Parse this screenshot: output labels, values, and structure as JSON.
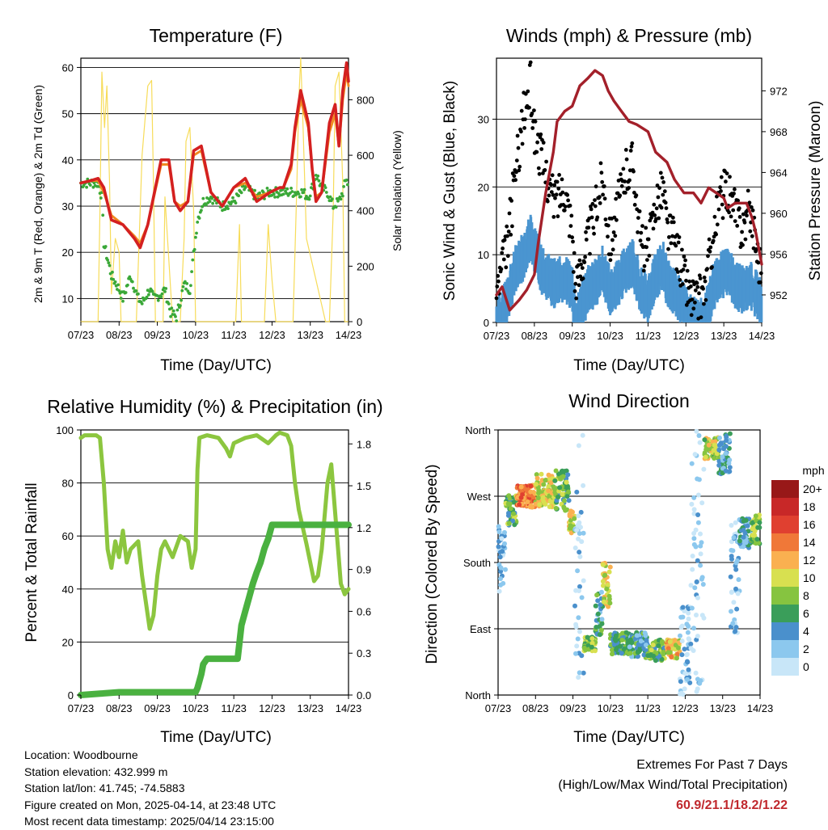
{
  "chart_data": [
    {
      "id": "temperature",
      "type": "line",
      "title": "Temperature (F)",
      "xlabel": "Time (Day/UTC)",
      "ylabel": "2m & 9m T (Red, Orange) & 2m Td (Green)",
      "y2label": "Solar Insolation (Yellow)",
      "x_ticks": [
        "07/23",
        "08/23",
        "09/23",
        "10/23",
        "11/23",
        "12/23",
        "13/23",
        "14/23"
      ],
      "xlim": [
        0,
        7
      ],
      "ylim": [
        5,
        62
      ],
      "y_ticks": [
        10,
        20,
        30,
        40,
        50,
        60
      ],
      "y2lim": [
        0,
        950
      ],
      "y2_ticks": [
        0,
        200,
        400,
        600,
        800
      ],
      "grid": true,
      "series": [
        {
          "key": "t2",
          "color": "#d42020",
          "x": [
            0,
            0.25,
            0.45,
            0.6,
            0.8,
            1.1,
            1.4,
            1.55,
            1.75,
            1.95,
            2.1,
            2.3,
            2.45,
            2.6,
            2.8,
            2.95,
            3.15,
            3.4,
            3.7,
            4.0,
            4.3,
            4.6,
            4.95,
            5.2,
            5.3,
            5.5,
            5.6,
            5.75,
            5.95,
            6.05,
            6.15,
            6.3,
            6.5,
            6.65,
            6.75,
            6.85,
            6.95,
            7.0
          ],
          "y": [
            35,
            35.5,
            36,
            34,
            27,
            26,
            23,
            21,
            26,
            34,
            40,
            40,
            31,
            29,
            31,
            42,
            43,
            33,
            30,
            34,
            36,
            31,
            33,
            34,
            34,
            39,
            47,
            55,
            48,
            38,
            31,
            33,
            48,
            52,
            43,
            55,
            61,
            57
          ]
        },
        {
          "key": "t9",
          "color": "#f08a20",
          "x": [
            0,
            0.25,
            0.45,
            0.6,
            0.8,
            1.1,
            1.4,
            1.55,
            1.75,
            1.95,
            2.1,
            2.3,
            2.45,
            2.6,
            2.8,
            2.95,
            3.15,
            3.4,
            3.7,
            4.0,
            4.3,
            4.6,
            4.95,
            5.2,
            5.3,
            5.5,
            5.6,
            5.75,
            5.95,
            6.05,
            6.15,
            6.3,
            6.5,
            6.65,
            6.75,
            6.85,
            6.95,
            7.0
          ],
          "y": [
            35,
            35.5,
            35.5,
            33,
            28,
            26,
            23.5,
            22,
            26,
            33.5,
            39,
            39,
            31,
            30,
            31,
            41,
            42,
            33,
            30,
            34,
            35,
            32,
            33,
            34,
            34,
            38,
            46,
            53,
            47,
            38,
            32,
            33,
            46,
            50,
            43,
            53,
            59,
            56
          ]
        },
        {
          "key": "td",
          "color": "#3aa838",
          "x": [
            0,
            0.3,
            0.45,
            0.55,
            0.6,
            0.8,
            1.0,
            1.1,
            1.3,
            1.5,
            1.6,
            1.8,
            1.9,
            2.1,
            2.2,
            2.35,
            2.5,
            2.7,
            2.85,
            3.05,
            3.2,
            3.4,
            3.7,
            4.0,
            4.3,
            4.6,
            4.95,
            5.2,
            5.5,
            5.8,
            5.95,
            6.05,
            6.15,
            6.3,
            6.45,
            6.6,
            6.75,
            6.85,
            6.95,
            7.0
          ],
          "y": [
            35,
            35,
            35,
            32,
            22,
            15,
            12,
            10,
            15,
            10,
            9,
            12,
            10,
            11,
            12,
            7,
            6,
            13,
            12,
            27,
            31,
            32,
            30,
            31,
            34,
            32,
            33,
            33,
            33,
            33,
            32,
            34,
            37,
            34,
            33,
            30,
            31,
            33,
            36,
            34
          ]
        },
        {
          "key": "solar",
          "axis": "y2",
          "color": "#f7dc5a",
          "x": [
            0,
            0.35,
            0.45,
            0.5,
            0.55,
            0.62,
            0.68,
            0.75,
            0.8,
            0.9,
            1.0,
            1.05,
            1.2,
            1.35,
            1.45,
            1.6,
            1.75,
            1.85,
            1.9,
            1.95,
            2.1,
            2.15,
            2.2,
            2.4,
            2.6,
            2.7,
            2.75,
            2.85,
            2.95,
            3.0,
            3.1,
            3.15,
            3.5,
            3.6,
            4.05,
            4.15,
            4.2,
            4.6,
            4.8,
            4.9,
            5.0,
            5.1,
            5.5,
            5.55,
            5.65,
            5.7,
            5.75,
            5.8,
            5.9,
            6.4,
            6.5,
            6.6,
            6.65,
            6.75,
            6.85,
            6.9,
            7.0
          ],
          "y": [
            0,
            0,
            0,
            400,
            900,
            700,
            850,
            500,
            100,
            300,
            250,
            0,
            0,
            0,
            0,
            600,
            850,
            870,
            500,
            0,
            0,
            0,
            450,
            0,
            0,
            300,
            650,
            700,
            400,
            0,
            0,
            0,
            0,
            0,
            0,
            350,
            0,
            0,
            0,
            350,
            150,
            0,
            0,
            0,
            500,
            800,
            950,
            750,
            300,
            0,
            0,
            400,
            850,
            900,
            500,
            0,
            0
          ]
        }
      ]
    },
    {
      "id": "winds",
      "type": "scatter",
      "title": "Winds (mph) & Pressure (mb)",
      "xlabel": "Time (Day/UTC)",
      "ylabel": "Sonic Wind & Gust (Blue, Black)",
      "y2label": "Station Pressure (Maroon)",
      "x_ticks": [
        "07/23",
        "08/23",
        "09/23",
        "10/23",
        "11/23",
        "12/23",
        "13/23",
        "14/23"
      ],
      "xlim": [
        0,
        7
      ],
      "ylim": [
        0,
        39
      ],
      "y_ticks": [
        0,
        10,
        20,
        30
      ],
      "y2lim": [
        949.3,
        975.2
      ],
      "y2_ticks": [
        952,
        956,
        960,
        964,
        968,
        972
      ],
      "grid": true,
      "series": [
        {
          "key": "gust",
          "color": "#000000",
          "x": [
            0,
            0.3,
            0.5,
            0.7,
            0.9,
            1.0,
            1.2,
            1.5,
            1.8,
            2.0,
            2.1,
            2.2,
            2.4,
            2.6,
            2.8,
            3.0,
            3.2,
            3.4,
            3.6,
            3.8,
            4.0,
            4.2,
            4.4,
            4.5,
            4.7,
            4.9,
            5.1,
            5.3,
            5.5,
            5.7,
            5.9,
            6.1,
            6.3,
            6.5,
            6.7,
            6.9,
            7.0
          ],
          "y": [
            4,
            12,
            22,
            30,
            35,
            28,
            24,
            18,
            20,
            14,
            4,
            8,
            12,
            16,
            22,
            12,
            17,
            22,
            24,
            12,
            10,
            18,
            20,
            14,
            12,
            8,
            4,
            3,
            5,
            12,
            18,
            20,
            16,
            14,
            17,
            10,
            8
          ]
        },
        {
          "key": "wind",
          "color": "#4a95d0",
          "x": [
            0,
            0.3,
            0.5,
            0.7,
            0.9,
            1.0,
            1.2,
            1.5,
            1.8,
            2.0,
            2.1,
            2.2,
            2.4,
            2.6,
            2.8,
            3.0,
            3.2,
            3.4,
            3.6,
            3.8,
            4.0,
            4.2,
            4.4,
            4.5,
            4.7,
            4.9,
            5.1,
            5.3,
            5.5,
            5.7,
            5.9,
            6.1,
            6.3,
            6.5,
            6.7,
            6.9,
            7.0
          ],
          "y": [
            1,
            5,
            9,
            11,
            14,
            12,
            9,
            7,
            8,
            6,
            1,
            3,
            6,
            7,
            9,
            6,
            7,
            9,
            10,
            6,
            5,
            8,
            10,
            7,
            6,
            4,
            2,
            1,
            2,
            6,
            8,
            9,
            7,
            6,
            7,
            5,
            4
          ]
        },
        {
          "key": "pressure",
          "axis": "y2",
          "color": "#a3202a",
          "x": [
            0,
            0.15,
            0.35,
            0.6,
            0.8,
            1.0,
            1.1,
            1.3,
            1.5,
            1.6,
            1.8,
            2.0,
            2.2,
            2.4,
            2.6,
            2.8,
            2.95,
            3.1,
            3.3,
            3.5,
            3.7,
            4.0,
            4.2,
            4.5,
            4.7,
            4.95,
            5.2,
            5.4,
            5.6,
            5.8,
            6.0,
            6.1,
            6.3,
            6.6,
            6.75,
            6.85,
            7.0
          ],
          "y": [
            952,
            952.8,
            950.5,
            951.5,
            952.5,
            954,
            957,
            962,
            966,
            969,
            970,
            970.5,
            972.5,
            973.2,
            974,
            973.5,
            972,
            971,
            970,
            969,
            968.7,
            968,
            966,
            965,
            963.3,
            962,
            962,
            961,
            962.5,
            962,
            961.5,
            960.5,
            961,
            961,
            959.5,
            958,
            955
          ]
        }
      ]
    },
    {
      "id": "humidity",
      "type": "line",
      "title": "Relative Humidity (%) & Precipitation (in)",
      "xlabel": "Time (Day/UTC)",
      "ylabel": "Percent & Total Rainfall",
      "x_ticks": [
        "07/23",
        "08/23",
        "09/23",
        "10/23",
        "11/23",
        "12/23",
        "13/23",
        "14/23"
      ],
      "xlim": [
        0,
        7
      ],
      "ylim": [
        0,
        100
      ],
      "y_ticks": [
        0,
        20,
        40,
        60,
        80,
        100
      ],
      "y2lim": [
        0,
        1.9
      ],
      "y2_ticks": [
        "0.0",
        "0.3",
        "0.6",
        "0.9",
        "1.2",
        "1.5",
        "1.8"
      ],
      "grid": true,
      "series": [
        {
          "key": "rh",
          "color": "#8cc63f",
          "x": [
            0,
            0.1,
            0.4,
            0.5,
            0.6,
            0.7,
            0.8,
            0.9,
            1.0,
            1.1,
            1.2,
            1.3,
            1.5,
            1.6,
            1.7,
            1.8,
            1.9,
            2.0,
            2.1,
            2.2,
            2.4,
            2.6,
            2.8,
            2.9,
            3.0,
            3.05,
            3.1,
            3.3,
            3.6,
            3.8,
            3.9,
            4.0,
            4.3,
            4.6,
            4.9,
            5.1,
            5.2,
            5.4,
            5.5,
            5.6,
            5.7,
            5.9,
            6.1,
            6.2,
            6.3,
            6.45,
            6.55,
            6.7,
            6.8,
            6.9,
            7.0
          ],
          "y": [
            97,
            98,
            98,
            97,
            80,
            55,
            48,
            58,
            52,
            62,
            50,
            55,
            58,
            45,
            35,
            25,
            30,
            45,
            55,
            58,
            52,
            60,
            58,
            48,
            55,
            85,
            97,
            98,
            97,
            93,
            90,
            95,
            97,
            98,
            95,
            98,
            99,
            98,
            94,
            80,
            70,
            57,
            43,
            45,
            55,
            80,
            87,
            60,
            42,
            38,
            40
          ]
        },
        {
          "key": "precip",
          "axis": "y2",
          "color": "#4ab140",
          "x": [
            0,
            0.5,
            1.0,
            1.5,
            2.0,
            2.5,
            3.0,
            3.05,
            3.15,
            3.2,
            3.3,
            3.5,
            3.8,
            4.0,
            4.1,
            4.2,
            4.3,
            4.4,
            4.5,
            4.6,
            4.7,
            4.8,
            4.9,
            5.0,
            5.5,
            6.0,
            6.5,
            7.0
          ],
          "y": [
            0.0,
            0.01,
            0.02,
            0.02,
            0.02,
            0.02,
            0.02,
            0.05,
            0.15,
            0.22,
            0.26,
            0.26,
            0.26,
            0.26,
            0.26,
            0.5,
            0.6,
            0.7,
            0.8,
            0.88,
            0.95,
            1.05,
            1.12,
            1.22,
            1.22,
            1.22,
            1.22,
            1.22
          ]
        }
      ]
    },
    {
      "id": "wind_direction",
      "type": "scatter",
      "title": "Wind Direction",
      "xlabel": "Time (Day/UTC)",
      "ylabel": "Direction (Colored By Speed)",
      "x_ticks": [
        "07/23",
        "08/23",
        "09/23",
        "10/23",
        "11/23",
        "12/23",
        "13/23",
        "14/23"
      ],
      "xlim": [
        0,
        7
      ],
      "ylim": [
        0,
        360
      ],
      "y_ticks": [
        "North",
        "East",
        "South",
        "West",
        "North"
      ],
      "colorbar_title": "mph",
      "colorbar_labels": [
        "0",
        "2",
        "4",
        "6",
        "8",
        "10",
        "12",
        "14",
        "16",
        "18",
        "20+"
      ],
      "colorbar_colors": [
        "#c8e6f8",
        "#8cc8ee",
        "#4a90cc",
        "#3a9e5a",
        "#86c440",
        "#d8e050",
        "#fab050",
        "#f07838",
        "#e04030",
        "#c82828",
        "#981818"
      ],
      "clusters": [
        {
          "x0": 0.0,
          "x1": 0.2,
          "d0": 140,
          "d1": 230,
          "s": 2
        },
        {
          "x0": 0.2,
          "x1": 0.5,
          "d0": 230,
          "d1": 275,
          "s": 7
        },
        {
          "x0": 0.5,
          "x1": 1.0,
          "d0": 255,
          "d1": 285,
          "s": 14
        },
        {
          "x0": 1.0,
          "x1": 1.5,
          "d0": 255,
          "d1": 300,
          "s": 10
        },
        {
          "x0": 1.5,
          "x1": 1.9,
          "d0": 250,
          "d1": 305,
          "s": 7
        },
        {
          "x0": 1.9,
          "x1": 2.05,
          "d0": 220,
          "d1": 250,
          "s": 10
        },
        {
          "x0": 2.05,
          "x1": 2.3,
          "d0": 0,
          "d1": 360,
          "s": 1
        },
        {
          "x0": 2.3,
          "x1": 2.6,
          "d0": 60,
          "d1": 80,
          "s": 8
        },
        {
          "x0": 2.6,
          "x1": 2.8,
          "d0": 80,
          "d1": 140,
          "s": 5
        },
        {
          "x0": 2.8,
          "x1": 3.0,
          "d0": 120,
          "d1": 180,
          "s": 10
        },
        {
          "x0": 3.0,
          "x1": 3.5,
          "d0": 55,
          "d1": 85,
          "s": 6
        },
        {
          "x0": 3.5,
          "x1": 4.0,
          "d0": 50,
          "d1": 85,
          "s": 5
        },
        {
          "x0": 4.0,
          "x1": 4.5,
          "d0": 45,
          "d1": 75,
          "s": 7
        },
        {
          "x0": 4.5,
          "x1": 4.85,
          "d0": 50,
          "d1": 75,
          "s": 11
        },
        {
          "x0": 4.85,
          "x1": 5.15,
          "d0": 0,
          "d1": 120,
          "s": 2
        },
        {
          "x0": 5.15,
          "x1": 5.5,
          "d0": 0,
          "d1": 360,
          "s": 1
        },
        {
          "x0": 5.5,
          "x1": 5.9,
          "d0": 320,
          "d1": 350,
          "s": 9
        },
        {
          "x0": 5.9,
          "x1": 6.2,
          "d0": 300,
          "d1": 355,
          "s": 4
        },
        {
          "x0": 6.2,
          "x1": 6.45,
          "d0": 60,
          "d1": 240,
          "s": 2
        },
        {
          "x0": 6.45,
          "x1": 6.75,
          "d0": 200,
          "d1": 240,
          "s": 4
        },
        {
          "x0": 6.75,
          "x1": 7.0,
          "d0": 205,
          "d1": 245,
          "s": 8
        }
      ]
    }
  ],
  "info": {
    "location": "Location: Woodbourne",
    "elevation": "Station elevation: 432.999 m",
    "latlon": "Station lat/lon: 41.745; -74.5883",
    "created": "Figure created on Mon, 2025-04-14, at 23:48 UTC",
    "recent": "Most recent data timestamp: 2025/04/14 23:15:00"
  },
  "extremes": {
    "title": "Extremes For Past 7 Days",
    "subtitle": "(High/Low/Max Wind/Total Precipitation)",
    "values": "60.9/21.1/18.2/1.22"
  }
}
